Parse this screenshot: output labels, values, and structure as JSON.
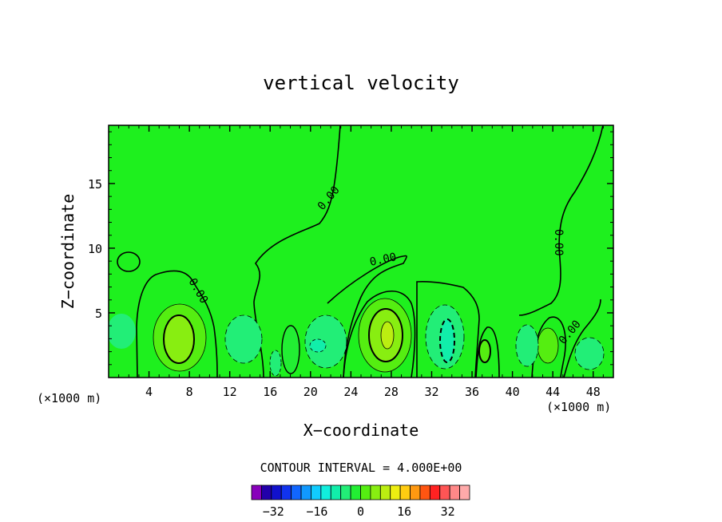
{
  "chart_data": {
    "type": "contour",
    "title": "vertical velocity",
    "xlabel": "X−coordinate",
    "ylabel": "Z−coordinate",
    "x_unit_left": "(×1000 m)",
    "x_unit_right": "(×1000 m)",
    "xlim": [
      0,
      50
    ],
    "ylim": [
      0,
      19.5
    ],
    "xticks": [
      4,
      8,
      12,
      16,
      20,
      24,
      28,
      32,
      36,
      40,
      44,
      48
    ],
    "yticks": [
      5,
      10,
      15
    ],
    "contour_interval_text": "CONTOUR INTERVAL = 4.000E+00",
    "contour_labels": [
      "0.00",
      "0.00",
      "0.00",
      "0.00",
      "0.00"
    ],
    "background_color": "#1ef01e",
    "colorbar": {
      "colors": [
        "#8800bb",
        "#2200aa",
        "#1111cc",
        "#1133ee",
        "#1166ff",
        "#1199ff",
        "#11ccff",
        "#11eedd",
        "#11eeaa",
        "#22ee77",
        "#22ee33",
        "#55ee11",
        "#88ee11",
        "#bbee11",
        "#eeee11",
        "#ffcc11",
        "#ff9911",
        "#ff5511",
        "#ff2222",
        "#ff5555",
        "#ff8888",
        "#ffaaaa"
      ],
      "tick_labels": [
        "−32",
        "−16",
        "0",
        "16",
        "32"
      ],
      "tick_values": [
        -32,
        -16,
        0,
        16,
        32
      ],
      "range": [
        -40,
        40
      ]
    },
    "features": [
      {
        "kind": "updraft",
        "x": 7,
        "z": 3,
        "level": 16
      },
      {
        "kind": "updraft",
        "x": 27.8,
        "z": 3.5,
        "level": 16
      },
      {
        "kind": "updraft",
        "x": 37.5,
        "z": 2.2,
        "level": 8
      },
      {
        "kind": "updraft",
        "x": 43.3,
        "z": 2.5,
        "level": 8
      },
      {
        "kind": "updraft",
        "x": 18,
        "z": 2.5,
        "level": 4
      },
      {
        "kind": "downdraft",
        "x": 33.5,
        "z": 3.0,
        "level": -12
      },
      {
        "kind": "downdraft",
        "x": 20.8,
        "z": 2.5,
        "level": -8
      },
      {
        "kind": "downdraft",
        "x": 13.5,
        "z": 3.5,
        "level": -4
      },
      {
        "kind": "downdraft",
        "x": 40.8,
        "z": 2.5,
        "level": -8
      },
      {
        "kind": "downdraft",
        "x": 47,
        "z": 2.0,
        "level": -8
      },
      {
        "kind": "downdraft",
        "x": 2,
        "z": 3.5,
        "level": -4
      }
    ]
  }
}
